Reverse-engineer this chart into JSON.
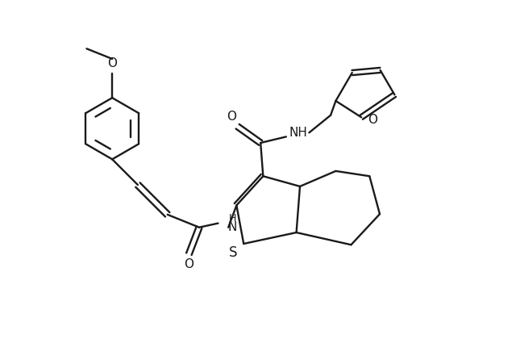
{
  "bg_color": "#ffffff",
  "line_color": "#1a1a1a",
  "line_width": 1.7,
  "figsize": [
    6.4,
    4.2
  ],
  "dpi": 100,
  "xlim": [
    0.0,
    10.0
  ],
  "ylim": [
    0.5,
    7.0
  ]
}
